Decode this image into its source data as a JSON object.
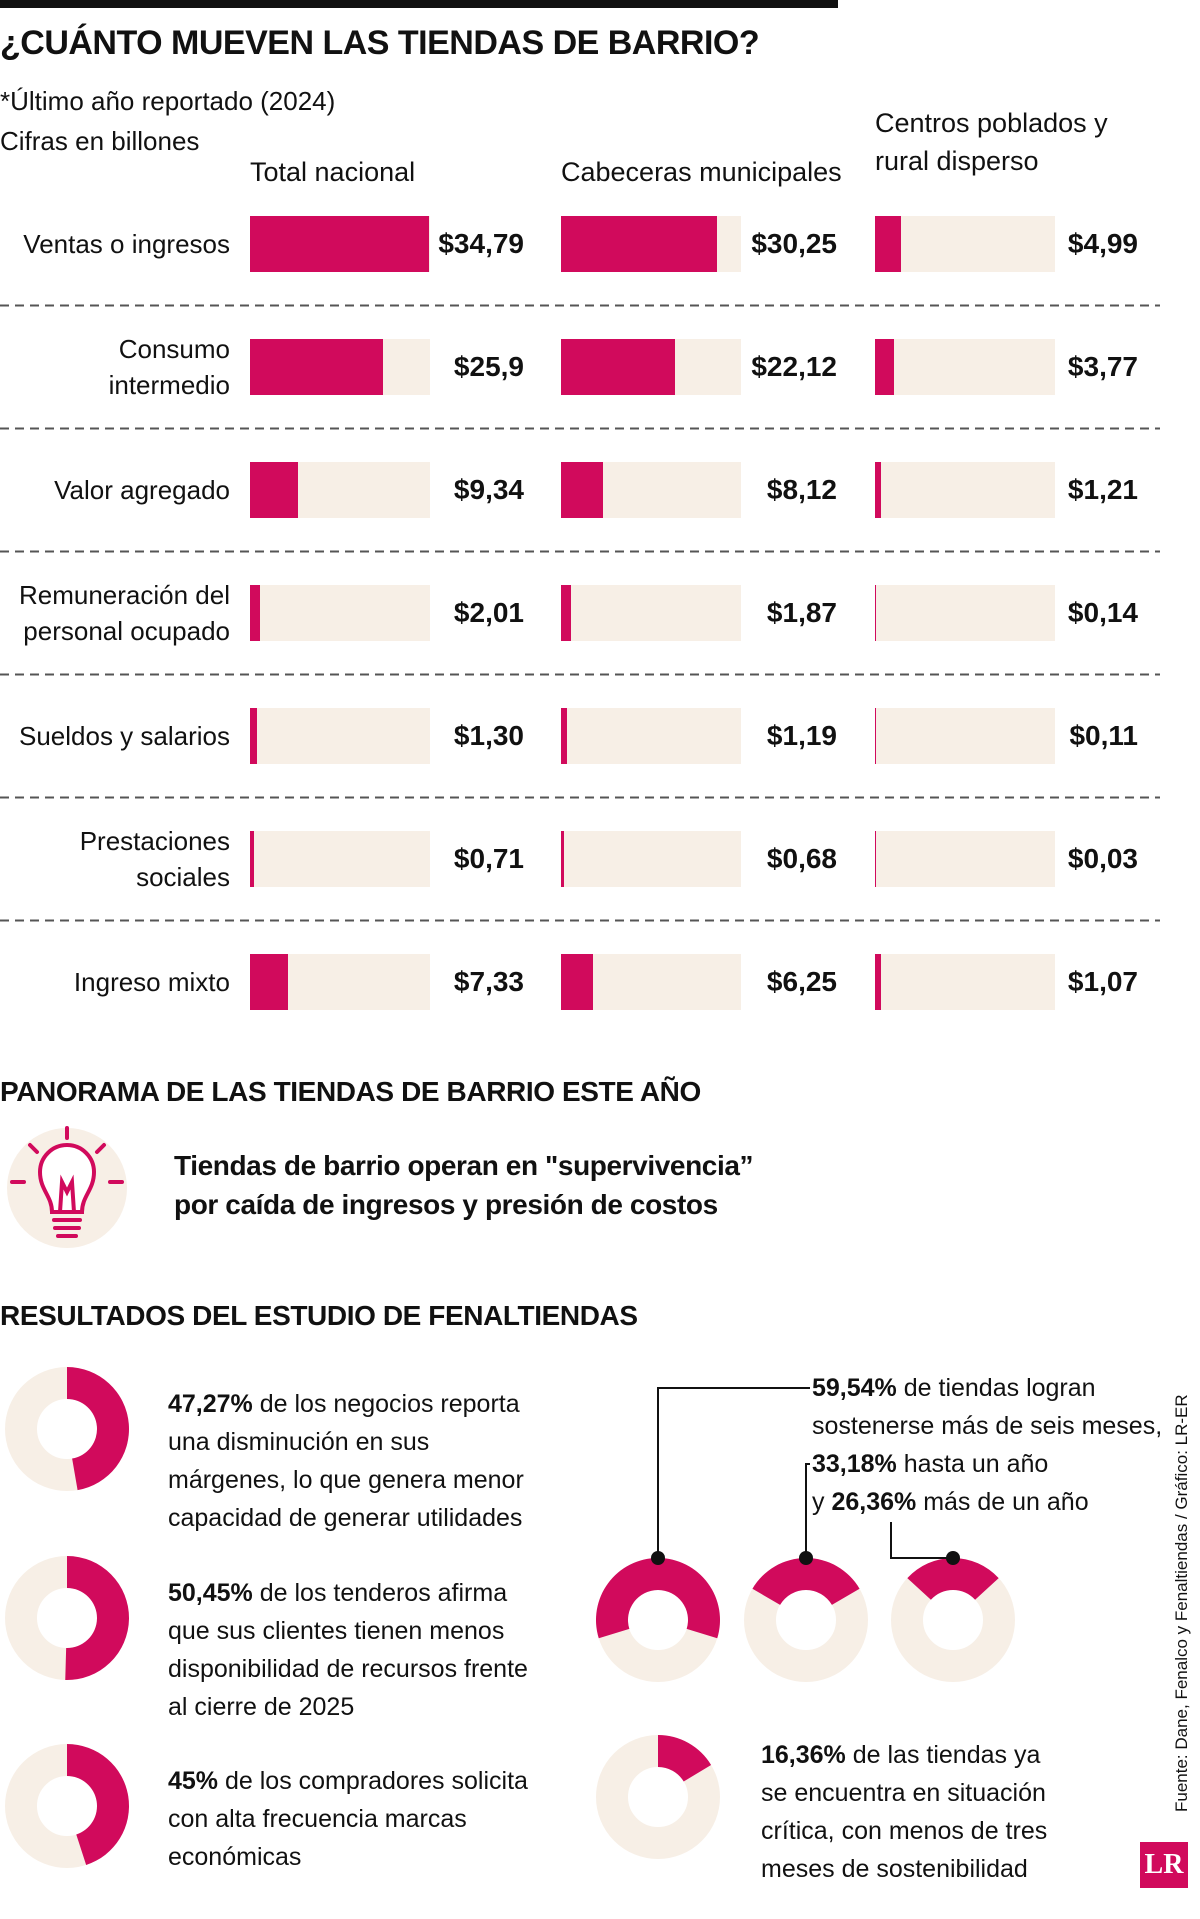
{
  "chart_data": {
    "type": "bar",
    "title": "¿CUÁNTO MUEVEN LAS TIENDAS DE BARRIO?",
    "notes": [
      "*Último año reportado (2024)",
      "Cifras en billones"
    ],
    "categories": [
      "Ventas o ingresos",
      "Consumo intermedio",
      "Valor agregado",
      "Remuneración del personal ocupado",
      "Sueldos y salarios",
      "Prestaciones sociales",
      "Ingreso mixto"
    ],
    "xlim": [
      0,
      35
    ],
    "color": "#d10a5c",
    "track_color": "#f7efe6",
    "series": [
      {
        "name": "Total nacional",
        "values": [
          34.79,
          25.9,
          9.34,
          2.01,
          1.3,
          0.71,
          7.33
        ],
        "value_labels": [
          "$34,79",
          "$25,9",
          "$9,34",
          "$2,01",
          "$1,30",
          "$0,71",
          "$7,33"
        ]
      },
      {
        "name": "Cabeceras municipales",
        "values": [
          30.25,
          22.12,
          8.12,
          1.87,
          1.19,
          0.68,
          6.25
        ],
        "value_labels": [
          "$30,25",
          "$22,12",
          "$8,12",
          "$1,87",
          "$1,19",
          "$0,68",
          "$6,25"
        ]
      },
      {
        "name": "Centros poblados y rural disperso",
        "values": [
          4.99,
          3.77,
          1.21,
          0.14,
          0.11,
          0.03,
          1.07
        ],
        "value_labels": [
          "$4,99",
          "$3,77",
          "$1,21",
          "$0,14",
          "$0,11",
          "$0,03",
          "$1,07"
        ]
      }
    ]
  },
  "panorama": {
    "title": "PANORAMA DE LAS TIENDAS DE BARRIO ESTE AÑO",
    "text": [
      "Tiendas de barrio operan en \"supervivencia”",
      "por caída de ingresos y presión de costos"
    ]
  },
  "results": {
    "title": "RESULTADOS DEL ESTUDIO DE FENALTIENDAS",
    "donuts": [
      {
        "value": 47.27,
        "value_label": "47,27%",
        "text": "de los negocios reporta una disminución en sus márgenes, lo que genera menor capacidad de generar utilidades"
      },
      {
        "value": 50.45,
        "value_label": "50,45%",
        "text": "de los tenderos afirma que sus clientes tienen menos disponibilidad de recursos frente al cierre de 2025"
      },
      {
        "value": 45,
        "value_label": "45%",
        "text": "de los compradores solicita con alta frecuencia marcas económicas"
      }
    ],
    "sustain": [
      {
        "value": 59.54,
        "value_label": "59,54%",
        "text": "de tiendas logran sostenerse más de seis meses,"
      },
      {
        "value": 33.18,
        "value_label": "33,18%",
        "text": "hasta un año"
      },
      {
        "prefix": "y",
        "value": 26.36,
        "value_label": "26,36%",
        "text": "más de un año"
      }
    ],
    "critical": {
      "value": 16.36,
      "value_label": "16,36%",
      "text": "de las tiendas ya se encuentra en situación crítica, con menos de tres meses de sostenibilidad"
    }
  },
  "source": "Fuente: Dane, Fenalco y Fenaltiendas / Gráfico: LR-ER",
  "logo": "LR"
}
